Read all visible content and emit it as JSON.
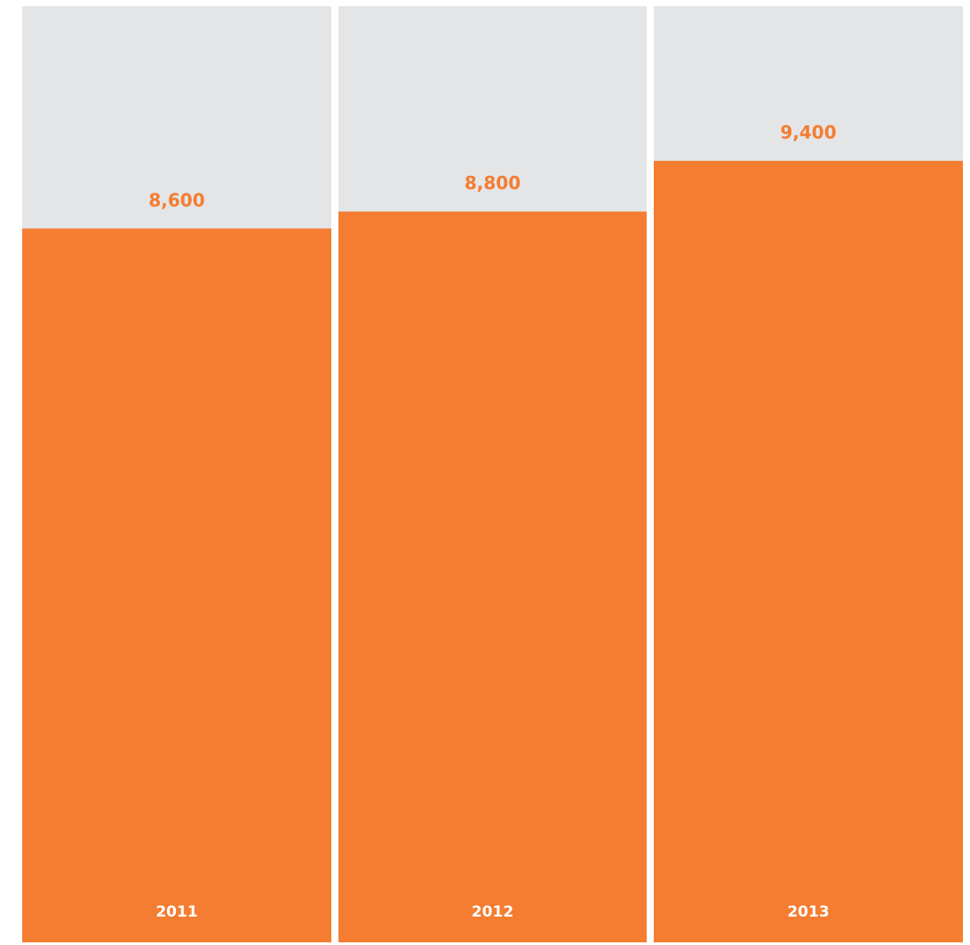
{
  "chart_data": {
    "type": "bar",
    "categories": [
      "2011",
      "2012",
      "2013"
    ],
    "values": [
      8600,
      8800,
      9400
    ],
    "value_labels": [
      "8,600",
      "8,800",
      "9,400"
    ],
    "title": "",
    "xlabel": "",
    "ylabel": "",
    "grid": false,
    "legend": "none"
  },
  "colors": {
    "bar": "#F47D31",
    "track": "#E4E5E7",
    "value_label": "#F47D31",
    "category_label": "#FFFFFF",
    "background": "#FFFFFF"
  }
}
